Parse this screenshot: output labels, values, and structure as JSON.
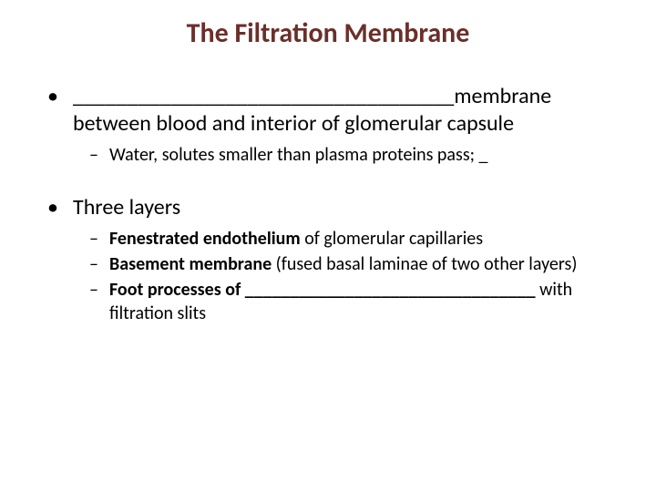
{
  "title": {
    "text": "The Filtration Membrane",
    "color": "#6b2f2a",
    "fontsize": 30
  },
  "body": {
    "fontsize_l1": 24,
    "fontsize_l2": 20,
    "text_color": "#000000"
  },
  "bullets": [
    {
      "parts": [
        {
          "text": "___________________________________",
          "bold": false
        },
        {
          "text": "membrane between blood and interior of glomerular capsule",
          "bold": false
        }
      ],
      "sub": [
        {
          "parts": [
            {
              "text": "Water, solutes smaller than plasma proteins pass; _",
              "bold": false
            }
          ]
        }
      ]
    },
    {
      "parts": [
        {
          "text": "Three layers",
          "bold": false
        }
      ],
      "sub": [
        {
          "parts": [
            {
              "text": "Fenestrated endothelium",
              "bold": true
            },
            {
              "text": " of glomerular capillaries",
              "bold": false
            }
          ]
        },
        {
          "parts": [
            {
              "text": "Basement membrane",
              "bold": true
            },
            {
              "text": " (fused basal laminae of two other layers)",
              "bold": false
            }
          ]
        },
        {
          "parts": [
            {
              "text": "Foot processes of ________________________________",
              "bold": true
            },
            {
              "text": " with filtration slits",
              "bold": false
            }
          ]
        }
      ]
    }
  ]
}
